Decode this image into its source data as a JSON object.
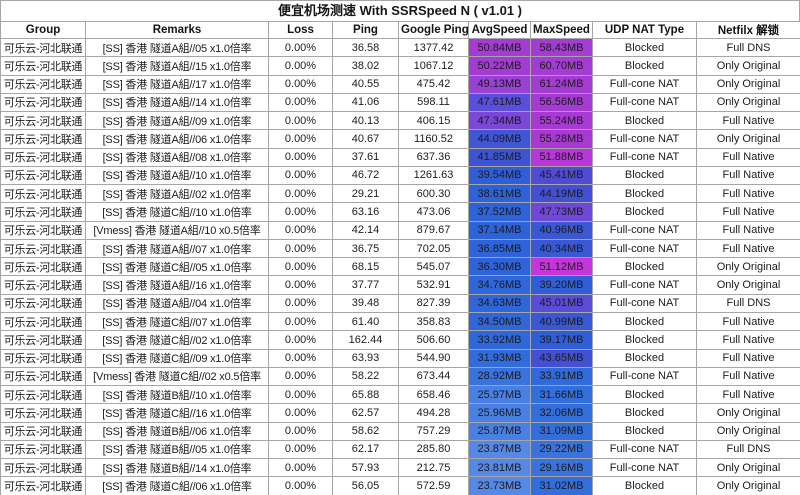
{
  "chart_data": {
    "type": "table",
    "title": "便宜机场测速 With SSRSpeed N ( v1.01 )",
    "columns": [
      "Group",
      "Remarks",
      "Loss",
      "Ping",
      "Google Ping",
      "AvgSpeed",
      "MaxSpeed",
      "UDP NAT Type",
      "Netfilx 解锁"
    ],
    "grid_color": "#A6A6A6",
    "speed_text_color": "#13123a",
    "rows": [
      {
        "group": "可乐云-河北联通",
        "remarks": "[SS] 香港  隧道A組//05 x1.0倍率",
        "loss": "0.00%",
        "ping": "36.58",
        "google_ping": "1377.42",
        "avg_speed": "50.84MB",
        "avg_color": "#A43BD2",
        "max_speed": "58.43MB",
        "max_color": "#A43BD2",
        "udp_nat": "Blocked",
        "netflix": "Full DNS"
      },
      {
        "group": "可乐云-河北联通",
        "remarks": "[SS] 香港  隧道A組//15 x1.0倍率",
        "loss": "0.00%",
        "ping": "38.02",
        "google_ping": "1067.12",
        "avg_speed": "50.22MB",
        "avg_color": "#A43BD2",
        "max_speed": "60.70MB",
        "max_color": "#A43BD2",
        "udp_nat": "Blocked",
        "netflix": "Only Original"
      },
      {
        "group": "可乐云-河北联通",
        "remarks": "[SS] 香港  隧道A組//17 x1.0倍率",
        "loss": "0.00%",
        "ping": "40.55",
        "google_ping": "475.42",
        "avg_speed": "49.13MB",
        "avg_color": "#9941D2",
        "max_speed": "61.24MB",
        "max_color": "#A43BD2",
        "udp_nat": "Full-cone NAT",
        "netflix": "Only Original"
      },
      {
        "group": "可乐云-河北联通",
        "remarks": "[SS] 香港  隧道A組//14 x1.0倍率",
        "loss": "0.00%",
        "ping": "41.06",
        "google_ping": "598.11",
        "avg_speed": "47.61MB",
        "avg_color": "#5B4EDA",
        "max_speed": "56.56MB",
        "max_color": "#A43BD2",
        "udp_nat": "Full-cone NAT",
        "netflix": "Only Original"
      },
      {
        "group": "可乐云-河北联通",
        "remarks": "[SS] 香港  隧道A組//09 x1.0倍率",
        "loss": "0.00%",
        "ping": "40.13",
        "google_ping": "406.15",
        "avg_speed": "47.34MB",
        "avg_color": "#7C46D6",
        "max_speed": "55.24MB",
        "max_color": "#A83AD3",
        "udp_nat": "Blocked",
        "netflix": "Full Native"
      },
      {
        "group": "可乐云-河北联通",
        "remarks": "[SS] 香港  隧道A組//06 x1.0倍率",
        "loss": "0.00%",
        "ping": "40.67",
        "google_ping": "1160.52",
        "avg_speed": "44.09MB",
        "avg_color": "#4156D4",
        "max_speed": "55.28MB",
        "max_color": "#A83AD3",
        "udp_nat": "Full-cone NAT",
        "netflix": "Only Original"
      },
      {
        "group": "可乐云-河北联通",
        "remarks": "[SS] 香港  隧道A組//08 x1.0倍率",
        "loss": "0.00%",
        "ping": "37.61",
        "google_ping": "637.36",
        "avg_speed": "41.85MB",
        "avg_color": "#3D55D3",
        "max_speed": "51.88MB",
        "max_color": "#B937D8",
        "udp_nat": "Full-cone NAT",
        "netflix": "Full Native"
      },
      {
        "group": "可乐云-河北联通",
        "remarks": "[SS] 香港  隧道A組//10 x1.0倍率",
        "loss": "0.00%",
        "ping": "46.72",
        "google_ping": "1261.63",
        "avg_speed": "39.54MB",
        "avg_color": "#2F5ED8",
        "max_speed": "45.41MB",
        "max_color": "#4F4BD5",
        "udp_nat": "Blocked",
        "netflix": "Full Native"
      },
      {
        "group": "可乐云-河北联通",
        "remarks": "[SS] 香港  隧道A組//02 x1.0倍率",
        "loss": "0.00%",
        "ping": "29.21",
        "google_ping": "600.30",
        "avg_speed": "38.61MB",
        "avg_color": "#2E62D9",
        "max_speed": "44.19MB",
        "max_color": "#4450D3",
        "udp_nat": "Blocked",
        "netflix": "Full Native"
      },
      {
        "group": "可乐云-河北联通",
        "remarks": "[SS] 香港  隧道C組//10 x1.0倍率",
        "loss": "0.00%",
        "ping": "63.16",
        "google_ping": "473.06",
        "avg_speed": "37.52MB",
        "avg_color": "#2E62D9",
        "max_speed": "47.73MB",
        "max_color": "#6F48D8",
        "udp_nat": "Blocked",
        "netflix": "Full Native"
      },
      {
        "group": "可乐云-河北联通",
        "remarks": "[Vmess] 香港  隧道A組//10 x0.5倍率",
        "loss": "0.00%",
        "ping": "42.14",
        "google_ping": "879.67",
        "avg_speed": "37.14MB",
        "avg_color": "#2E62D9",
        "max_speed": "40.96MB",
        "max_color": "#3A58D4",
        "udp_nat": "Full-cone NAT",
        "netflix": "Full Native"
      },
      {
        "group": "可乐云-河北联通",
        "remarks": "[SS] 香港  隧道A組//07 x1.0倍率",
        "loss": "0.00%",
        "ping": "36.75",
        "google_ping": "702.05",
        "avg_speed": "36.85MB",
        "avg_color": "#2E63D9",
        "max_speed": "40.34MB",
        "max_color": "#3A58D4",
        "udp_nat": "Full-cone NAT",
        "netflix": "Full Native"
      },
      {
        "group": "可乐云-河北联通",
        "remarks": "[SS] 香港  隧道C組//05 x1.0倍率",
        "loss": "0.00%",
        "ping": "68.15",
        "google_ping": "545.07",
        "avg_speed": "36.30MB",
        "avg_color": "#2E63D9",
        "max_speed": "51.12MB",
        "max_color": "#C635DC",
        "udp_nat": "Blocked",
        "netflix": "Only Original"
      },
      {
        "group": "可乐云-河北联通",
        "remarks": "[SS] 香港  隧道A組//16 x1.0倍率",
        "loss": "0.00%",
        "ping": "37.77",
        "google_ping": "532.91",
        "avg_speed": "34.76MB",
        "avg_color": "#2F66DA",
        "max_speed": "39.20MB",
        "max_color": "#2F5ED8",
        "udp_nat": "Full-cone NAT",
        "netflix": "Only Original"
      },
      {
        "group": "可乐云-河北联通",
        "remarks": "[SS] 香港  隧道A組//04 x1.0倍率",
        "loss": "0.00%",
        "ping": "39.48",
        "google_ping": "827.39",
        "avg_speed": "34.63MB",
        "avg_color": "#2F66DA",
        "max_speed": "45.01MB",
        "max_color": "#5A4BD8",
        "udp_nat": "Full-cone NAT",
        "netflix": "Full DNS"
      },
      {
        "group": "可乐云-河北联通",
        "remarks": "[SS] 香港  隧道C組//07 x1.0倍率",
        "loss": "0.00%",
        "ping": "61.40",
        "google_ping": "358.83",
        "avg_speed": "34.50MB",
        "avg_color": "#2F66DA",
        "max_speed": "40.99MB",
        "max_color": "#3A58D4",
        "udp_nat": "Blocked",
        "netflix": "Full Native"
      },
      {
        "group": "可乐云-河北联通",
        "remarks": "[SS] 香港  隧道C組//02 x1.0倍率",
        "loss": "0.00%",
        "ping": "162.44",
        "google_ping": "506.60",
        "avg_speed": "33.92MB",
        "avg_color": "#3068DB",
        "max_speed": "39.17MB",
        "max_color": "#2F5ED8",
        "udp_nat": "Blocked",
        "netflix": "Full Native"
      },
      {
        "group": "可乐云-河北联通",
        "remarks": "[SS] 香港  隧道C組//09 x1.0倍率",
        "loss": "0.00%",
        "ping": "63.93",
        "google_ping": "544.90",
        "avg_speed": "31.93MB",
        "avg_color": "#326CDC",
        "max_speed": "43.65MB",
        "max_color": "#4450D3",
        "udp_nat": "Blocked",
        "netflix": "Full Native"
      },
      {
        "group": "可乐云-河北联通",
        "remarks": "[Vmess] 香港  隧道C組//02 x0.5倍率",
        "loss": "0.00%",
        "ping": "58.22",
        "google_ping": "673.44",
        "avg_speed": "28.92MB",
        "avg_color": "#3A73DE",
        "max_speed": "33.91MB",
        "max_color": "#306ADC",
        "udp_nat": "Full-cone NAT",
        "netflix": "Full Native"
      },
      {
        "group": "可乐云-河北联通",
        "remarks": "[SS] 香港  隧道B組//10 x1.0倍率",
        "loss": "0.00%",
        "ping": "65.88",
        "google_ping": "658.46",
        "avg_speed": "25.97MB",
        "avg_color": "#4A80E3",
        "max_speed": "31.66MB",
        "max_color": "#336EDD",
        "udp_nat": "Blocked",
        "netflix": "Full Native"
      },
      {
        "group": "可乐云-河北联通",
        "remarks": "[SS] 香港  隧道C組//16 x1.0倍率",
        "loss": "0.00%",
        "ping": "62.57",
        "google_ping": "494.28",
        "avg_speed": "25.96MB",
        "avg_color": "#4A80E3",
        "max_speed": "32.06MB",
        "max_color": "#336EDD",
        "udp_nat": "Blocked",
        "netflix": "Only Original"
      },
      {
        "group": "可乐云-河北联通",
        "remarks": "[SS] 香港  隧道B組//06 x1.0倍率",
        "loss": "0.00%",
        "ping": "58.62",
        "google_ping": "757.29",
        "avg_speed": "25.87MB",
        "avg_color": "#4A80E3",
        "max_speed": "31.09MB",
        "max_color": "#336EDD",
        "udp_nat": "Blocked",
        "netflix": "Only Original"
      },
      {
        "group": "可乐云-河北联通",
        "remarks": "[SS] 香港  隧道B組//05 x1.0倍率",
        "loss": "0.00%",
        "ping": "62.17",
        "google_ping": "285.80",
        "avg_speed": "23.87MB",
        "avg_color": "#5688E6",
        "max_speed": "29.22MB",
        "max_color": "#3A73DE",
        "udp_nat": "Full-cone NAT",
        "netflix": "Full DNS"
      },
      {
        "group": "可乐云-河北联通",
        "remarks": "[SS] 香港  隧道B組//14 x1.0倍率",
        "loss": "0.00%",
        "ping": "57.93",
        "google_ping": "212.75",
        "avg_speed": "23.81MB",
        "avg_color": "#5688E6",
        "max_speed": "29.16MB",
        "max_color": "#3A73DE",
        "udp_nat": "Full-cone NAT",
        "netflix": "Only Original"
      },
      {
        "group": "可乐云-河北联通",
        "remarks": "[SS] 香港  隧道C組//06 x1.0倍率",
        "loss": "0.00%",
        "ping": "56.05",
        "google_ping": "572.59",
        "avg_speed": "23.73MB",
        "avg_color": "#5688E6",
        "max_speed": "31.02MB",
        "max_color": "#336EDD",
        "udp_nat": "Blocked",
        "netflix": "Only Original"
      }
    ]
  }
}
